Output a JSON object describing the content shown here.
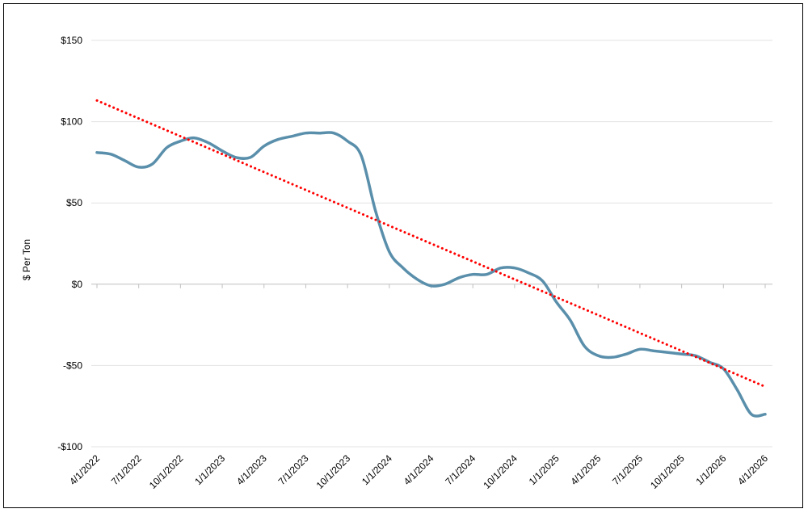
{
  "chart_data": {
    "type": "line",
    "title": "",
    "xlabel": "",
    "ylabel": "$ Per Ton",
    "ylim": [
      -100,
      150
    ],
    "yticks": [
      150,
      100,
      50,
      0,
      -50,
      -100
    ],
    "ytick_labels": [
      "$150",
      "$100",
      "$50",
      "$0",
      "-$50",
      "-$100"
    ],
    "grid": true,
    "legend": "none",
    "categories": [
      "4/1/2022",
      "7/1/2022",
      "10/1/2022",
      "1/1/2023",
      "4/1/2023",
      "7/1/2023",
      "10/1/2023",
      "1/1/2024",
      "4/1/2024",
      "7/1/2024",
      "10/1/2024",
      "1/1/2025",
      "4/1/2025",
      "7/1/2025",
      "10/1/2025",
      "1/1/2026",
      "4/1/2026"
    ],
    "x": [
      0,
      0.33,
      0.67,
      1,
      1.33,
      1.67,
      2,
      2.33,
      2.67,
      3,
      3.33,
      3.67,
      4,
      4.33,
      4.67,
      5,
      5.33,
      5.67,
      6,
      6.33,
      6.67,
      7,
      7.33,
      7.67,
      8,
      8.33,
      8.67,
      9,
      9.33,
      9.67,
      10,
      10.33,
      10.67,
      11,
      11.33,
      11.67,
      12,
      12.33,
      12.67,
      13,
      13.33,
      13.67,
      14,
      14.33,
      14.67,
      15,
      15.33,
      15.67,
      16
    ],
    "series": [
      {
        "values": [
          81,
          80,
          76,
          72,
          74,
          84,
          88,
          90,
          87,
          82,
          78,
          78,
          85,
          89,
          91,
          93,
          93,
          93,
          88,
          79,
          45,
          20,
          10,
          3,
          -1,
          0,
          4,
          6,
          6,
          10,
          10,
          7,
          2,
          -11,
          -22,
          -38,
          -44,
          -45,
          -43,
          -40,
          -41,
          -42,
          -43,
          -44,
          -48,
          -52,
          -65,
          -80,
          -80
        ],
        "color": "#5a8fab"
      },
      {
        "values": [
          113,
          102,
          91,
          80,
          69,
          58,
          47,
          36,
          25,
          14,
          3,
          -8,
          -19,
          -30,
          -41,
          -52,
          -63
        ],
        "x": [
          0,
          1,
          2,
          3,
          4,
          5,
          6,
          7,
          8,
          9,
          10,
          11,
          12,
          13,
          14,
          15,
          16
        ],
        "color": "#ff0000",
        "style": "dotted"
      }
    ]
  }
}
